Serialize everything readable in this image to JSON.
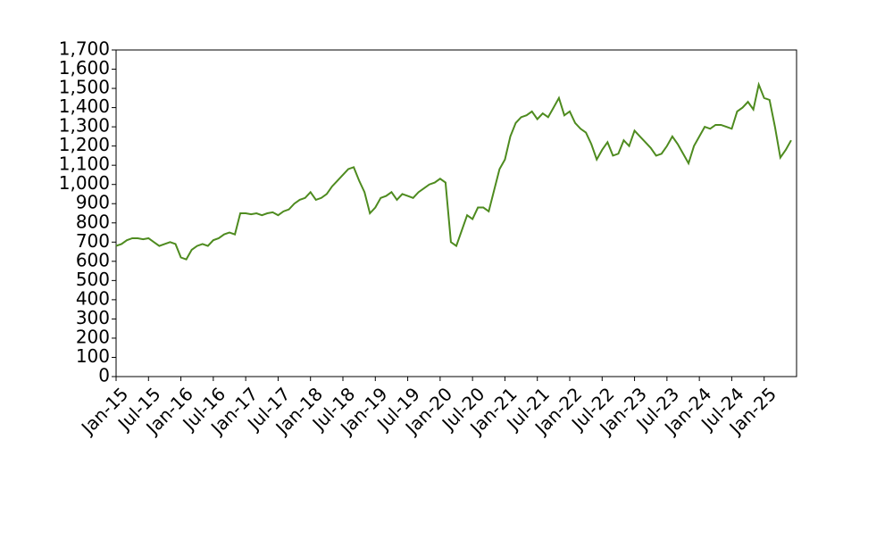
{
  "chart_data": {
    "type": "line",
    "x": [
      "2015-01",
      "2015-02",
      "2015-03",
      "2015-04",
      "2015-05",
      "2015-06",
      "2015-07",
      "2015-08",
      "2015-09",
      "2015-10",
      "2015-11",
      "2015-12",
      "2016-01",
      "2016-02",
      "2016-03",
      "2016-04",
      "2016-05",
      "2016-06",
      "2016-07",
      "2016-08",
      "2016-09",
      "2016-10",
      "2016-11",
      "2016-12",
      "2017-01",
      "2017-02",
      "2017-03",
      "2017-04",
      "2017-05",
      "2017-06",
      "2017-07",
      "2017-08",
      "2017-09",
      "2017-10",
      "2017-11",
      "2017-12",
      "2018-01",
      "2018-02",
      "2018-03",
      "2018-04",
      "2018-05",
      "2018-06",
      "2018-07",
      "2018-08",
      "2018-09",
      "2018-10",
      "2018-11",
      "2018-12",
      "2019-01",
      "2019-02",
      "2019-03",
      "2019-04",
      "2019-05",
      "2019-06",
      "2019-07",
      "2019-08",
      "2019-09",
      "2019-10",
      "2019-11",
      "2019-12",
      "2020-01",
      "2020-02",
      "2020-03",
      "2020-04",
      "2020-05",
      "2020-06",
      "2020-07",
      "2020-08",
      "2020-09",
      "2020-10",
      "2020-11",
      "2020-12",
      "2021-01",
      "2021-02",
      "2021-03",
      "2021-04",
      "2021-05",
      "2021-06",
      "2021-07",
      "2021-08",
      "2021-09",
      "2021-10",
      "2021-11",
      "2021-12",
      "2022-01",
      "2022-02",
      "2022-03",
      "2022-04",
      "2022-05",
      "2022-06",
      "2022-07",
      "2022-08",
      "2022-09",
      "2022-10",
      "2022-11",
      "2022-12",
      "2023-01",
      "2023-02",
      "2023-03",
      "2023-04",
      "2023-05",
      "2023-06",
      "2023-07",
      "2023-08",
      "2023-09",
      "2023-10",
      "2023-11",
      "2023-12",
      "2024-01",
      "2024-02",
      "2024-03",
      "2024-04",
      "2024-05",
      "2024-06",
      "2024-07",
      "2024-08",
      "2024-09",
      "2024-10",
      "2024-11",
      "2024-12",
      "2025-01",
      "2025-02",
      "2025-03",
      "2025-04",
      "2025-05",
      "2025-06"
    ],
    "series": [
      {
        "color": "#4e8b1f",
        "values": [
          680,
          690,
          710,
          720,
          720,
          715,
          720,
          700,
          680,
          690,
          700,
          690,
          620,
          610,
          660,
          680,
          690,
          680,
          710,
          720,
          740,
          750,
          740,
          850,
          850,
          845,
          850,
          840,
          850,
          855,
          840,
          860,
          870,
          900,
          920,
          930,
          960,
          920,
          930,
          950,
          990,
          1020,
          1050,
          1080,
          1090,
          1020,
          960,
          850,
          880,
          930,
          940,
          960,
          920,
          950,
          940,
          930,
          960,
          980,
          1000,
          1010,
          1030,
          1010,
          700,
          680,
          760,
          840,
          820,
          880,
          880,
          860,
          970,
          1080,
          1130,
          1250,
          1320,
          1350,
          1360,
          1380,
          1340,
          1370,
          1350,
          1400,
          1450,
          1360,
          1380,
          1320,
          1290,
          1270,
          1210,
          1130,
          1180,
          1220,
          1150,
          1160,
          1230,
          1200,
          1280,
          1250,
          1220,
          1190,
          1150,
          1160,
          1200,
          1250,
          1210,
          1160,
          1110,
          1200,
          1250,
          1300,
          1290,
          1310,
          1310,
          1300,
          1290,
          1380,
          1400,
          1430,
          1390,
          1520,
          1450,
          1440,
          1300,
          1140,
          1180,
          1230
        ]
      }
    ],
    "xlim": [
      "2015-01",
      "2025-07"
    ],
    "xticks": [
      {
        "value": "2015-01",
        "label": "Jan-15"
      },
      {
        "value": "2015-07",
        "label": "Jul-15"
      },
      {
        "value": "2016-01",
        "label": "Jan-16"
      },
      {
        "value": "2016-07",
        "label": "Jul-16"
      },
      {
        "value": "2017-01",
        "label": "Jan-17"
      },
      {
        "value": "2017-07",
        "label": "Jul-17"
      },
      {
        "value": "2018-01",
        "label": "Jan-18"
      },
      {
        "value": "2018-07",
        "label": "Jul-18"
      },
      {
        "value": "2019-01",
        "label": "Jan-19"
      },
      {
        "value": "2019-07",
        "label": "Jul-19"
      },
      {
        "value": "2020-01",
        "label": "Jan-20"
      },
      {
        "value": "2020-07",
        "label": "Jul-20"
      },
      {
        "value": "2021-01",
        "label": "Jan-21"
      },
      {
        "value": "2021-07",
        "label": "Jul-21"
      },
      {
        "value": "2022-01",
        "label": "Jan-22"
      },
      {
        "value": "2022-07",
        "label": "Jul-22"
      },
      {
        "value": "2023-01",
        "label": "Jan-23"
      },
      {
        "value": "2023-07",
        "label": "Jul-23"
      },
      {
        "value": "2024-01",
        "label": "Jan-24"
      },
      {
        "value": "2024-07",
        "label": "Jul-24"
      },
      {
        "value": "2025-01",
        "label": "Jan-25"
      }
    ],
    "ylim": [
      0,
      1700
    ],
    "yticks": [
      0,
      100,
      200,
      300,
      400,
      500,
      600,
      700,
      800,
      900,
      {
        "value": 1000,
        "label": "1,000"
      },
      {
        "value": 1100,
        "label": "1,100"
      },
      {
        "value": 1200,
        "label": "1,200"
      },
      {
        "value": 1300,
        "label": "1,300"
      },
      {
        "value": 1400,
        "label": "1,400"
      },
      {
        "value": 1500,
        "label": "1,500"
      },
      {
        "value": 1600,
        "label": "1,600"
      },
      {
        "value": 1700,
        "label": "1,700"
      }
    ],
    "grid": false
  }
}
